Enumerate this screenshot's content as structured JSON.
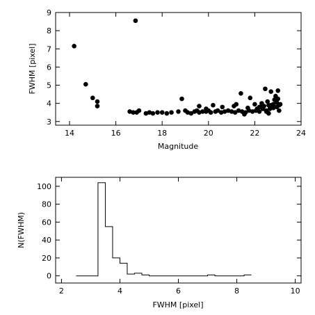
{
  "chart_data": [
    {
      "type": "scatter",
      "xlabel": "Magnitude",
      "ylabel": "FWHM [pixel]",
      "xlim": [
        13.4,
        24.0
      ],
      "ylim": [
        2.8,
        9.0
      ],
      "xticks": [
        14,
        16,
        18,
        20,
        22,
        24
      ],
      "yticks": [
        3,
        4,
        5,
        6,
        7,
        8,
        9
      ],
      "grid": false,
      "series": [
        {
          "x": [
            14.2,
            14.7,
            15.0,
            15.2,
            15.2,
            16.6,
            16.75,
            16.85,
            17.0,
            17.3,
            17.45,
            17.6,
            17.8,
            18.0,
            18.2,
            18.4,
            18.85,
            19.0,
            19.1,
            19.25,
            19.4,
            19.5,
            19.6,
            19.75,
            19.9,
            20.0,
            20.1,
            20.3,
            20.4,
            20.55,
            20.7,
            20.85,
            21.0,
            21.15,
            21.3,
            21.45,
            21.6,
            21.75,
            21.9,
            22.05,
            22.2,
            22.35,
            22.5,
            22.65,
            22.8,
            22.95,
            23.05,
            22.45,
            22.7,
            22.9,
            23.0,
            22.3,
            22.55,
            22.85,
            23.05,
            21.4,
            21.8,
            22.0,
            22.6,
            22.8,
            23.0,
            22.2,
            22.4,
            22.7,
            22.95,
            20.2,
            19.6,
            21.1,
            18.7,
            16.9,
            21.2,
            22.1,
            22.5,
            20.6,
            19.9,
            21.7,
            22.25,
            23.1,
            22.6,
            21.55
          ],
          "y": [
            7.15,
            5.05,
            4.3,
            4.1,
            3.85,
            3.55,
            3.5,
            8.55,
            3.6,
            3.45,
            3.5,
            3.45,
            3.5,
            3.5,
            3.45,
            3.5,
            4.25,
            3.6,
            3.5,
            3.45,
            3.55,
            3.6,
            3.5,
            3.55,
            3.55,
            3.6,
            3.5,
            3.55,
            3.6,
            3.5,
            3.55,
            3.6,
            3.55,
            3.5,
            3.6,
            3.55,
            3.5,
            3.6,
            3.55,
            3.6,
            3.55,
            3.7,
            3.6,
            3.7,
            3.75,
            3.8,
            3.6,
            4.8,
            4.65,
            4.4,
            4.7,
            4.0,
            4.1,
            4.2,
            3.9,
            4.55,
            4.3,
            3.95,
            3.9,
            3.95,
            4.25,
            3.8,
            3.85,
            3.9,
            4.05,
            3.9,
            3.85,
            3.85,
            3.55,
            3.5,
            3.95,
            3.7,
            3.55,
            3.8,
            3.7,
            3.75,
            3.8,
            3.95,
            3.45,
            3.4
          ]
        }
      ]
    },
    {
      "type": "histogram",
      "xlabel": "FWHM [pixel]",
      "ylabel": "N(FWHM)",
      "xlim": [
        1.8,
        10.2
      ],
      "ylim": [
        -8,
        110
      ],
      "xticks": [
        2,
        4,
        6,
        8,
        10
      ],
      "yticks": [
        0,
        20,
        40,
        60,
        80,
        100
      ],
      "grid": false,
      "bin_edges": [
        2.5,
        2.75,
        3.0,
        3.25,
        3.5,
        3.75,
        4.0,
        4.25,
        4.5,
        4.75,
        5.0,
        5.25,
        5.5,
        5.75,
        6.0,
        6.25,
        6.5,
        6.75,
        7.0,
        7.25,
        7.5,
        7.75,
        8.0,
        8.25,
        8.5
      ],
      "counts": [
        0,
        0,
        0,
        104,
        55,
        20,
        14,
        2,
        3,
        1,
        0,
        0,
        0,
        0,
        0,
        0,
        0,
        0,
        1,
        0,
        0,
        0,
        0,
        1
      ]
    }
  ]
}
